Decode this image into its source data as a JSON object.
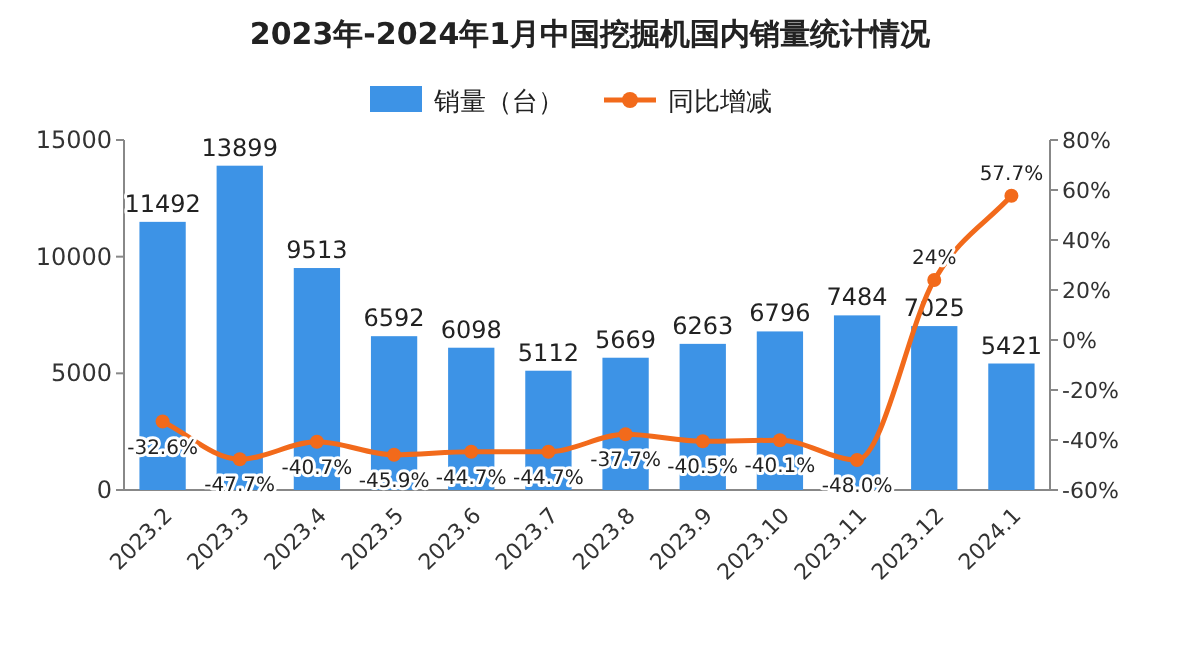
{
  "chart_data": {
    "type": "bar",
    "title": "2023年-2024年1月中国挖掘机国内销量统计情况",
    "categories": [
      "2023.2",
      "2023.3",
      "2023.4",
      "2023.5",
      "2023.6",
      "2023.7",
      "2023.8",
      "2023.9",
      "2023.10",
      "2023.11",
      "2023.12",
      "2024.1"
    ],
    "series": [
      {
        "name": "销量（台）",
        "color": "#3d93e6",
        "values": [
          11492,
          13899,
          9513,
          6592,
          6098,
          5112,
          5669,
          6263,
          6796,
          7484,
          7025,
          5421
        ],
        "value_labels": [
          "11492",
          "13899",
          "9513",
          "6592",
          "6098",
          "5112",
          "5669",
          "6263",
          "6796",
          "7484",
          "7025",
          "5421"
        ]
      },
      {
        "name": "同比增减",
        "type": "line",
        "axis": "y2",
        "color": "#f26a1b",
        "marker": "circle",
        "values": [
          -32.6,
          -47.7,
          -40.7,
          -45.9,
          -44.7,
          -44.7,
          -37.7,
          -40.5,
          -40.1,
          -48.0,
          24,
          57.7
        ],
        "value_labels": [
          "-32.6%",
          "-47.7%",
          "-40.7%",
          "-45.9%",
          "-44.7%",
          "-44.7%",
          "-37.7%",
          "-40.5%",
          "-40.1%",
          "-48.0%",
          "24%",
          "57.7%"
        ]
      }
    ],
    "ylim": [
      0,
      15000
    ],
    "yticks": [
      0,
      5000,
      10000,
      15000
    ],
    "y2lim": [
      -60,
      80
    ],
    "y2ticks": [
      {
        "value": -60,
        "label": "-60%"
      },
      {
        "value": -40,
        "label": "-40%"
      },
      {
        "value": -20,
        "label": "-20%"
      },
      {
        "value": 0,
        "label": "0%"
      },
      {
        "value": 20,
        "label": "20%"
      },
      {
        "value": 40,
        "label": "40%"
      },
      {
        "value": 60,
        "label": "60%"
      },
      {
        "value": 80,
        "label": "80%"
      }
    ],
    "legend": "top",
    "grid": false
  }
}
